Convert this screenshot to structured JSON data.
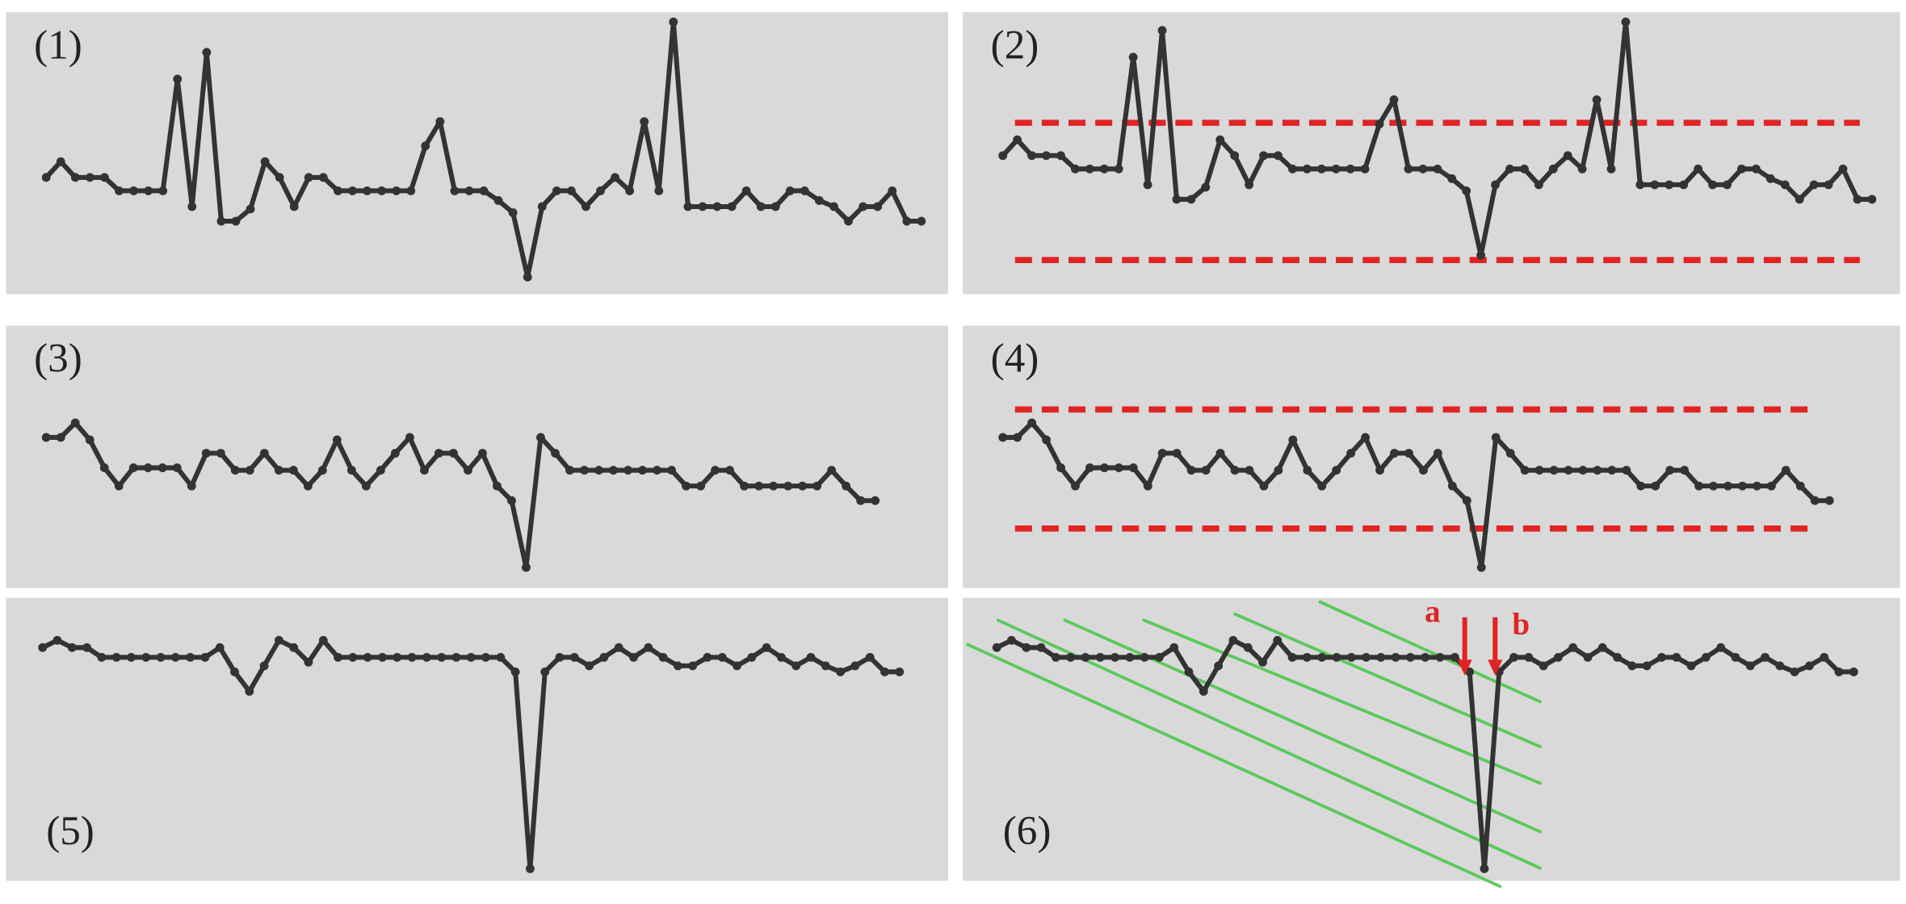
{
  "chart_data": [
    {
      "type": "line",
      "title": "(1)",
      "color": "#333333",
      "ylim": [
        0,
        232
      ],
      "values": [
        96,
        109,
        96,
        96,
        96,
        85,
        85,
        85,
        85,
        177,
        72,
        199,
        60,
        60,
        70,
        109,
        96,
        72,
        96,
        96,
        85,
        85,
        85,
        85,
        85,
        85,
        122,
        142,
        85,
        85,
        85,
        77,
        67,
        14,
        72,
        85,
        85,
        72,
        85,
        96,
        85,
        142,
        85,
        224,
        72,
        72,
        72,
        72,
        85,
        72,
        72,
        85,
        85,
        77,
        72,
        60,
        72,
        72,
        85,
        60,
        60
      ]
    },
    {
      "type": "line",
      "title": "(2)",
      "color": "#333333",
      "ylim": [
        0,
        232
      ],
      "values": [
        114,
        127,
        114,
        114,
        114,
        103,
        103,
        103,
        103,
        195,
        90,
        217,
        78,
        78,
        88,
        127,
        114,
        90,
        114,
        114,
        103,
        103,
        103,
        103,
        103,
        103,
        140,
        160,
        103,
        103,
        103,
        95,
        85,
        32,
        90,
        103,
        103,
        90,
        103,
        114,
        103,
        160,
        103,
        224,
        90,
        90,
        90,
        90,
        103,
        90,
        90,
        103,
        103,
        95,
        90,
        78,
        90,
        90,
        103,
        78,
        78
      ],
      "hlines": [
        141,
        28
      ],
      "hline_color": "#e02424"
    },
    {
      "type": "line",
      "title": "(3)",
      "color": "#333333",
      "ylim": [
        0,
        216
      ],
      "values": [
        124,
        124,
        136,
        122,
        99,
        84,
        99,
        99,
        99,
        99,
        84,
        111,
        111,
        97,
        97,
        111,
        97,
        97,
        84,
        97,
        122,
        97,
        84,
        97,
        111,
        124,
        97,
        111,
        111,
        97,
        111,
        84,
        72,
        17,
        124,
        111,
        97,
        97,
        97,
        97,
        97,
        97,
        97,
        97,
        84,
        84,
        97,
        97,
        84,
        84,
        84,
        84,
        84,
        84,
        97,
        84,
        72,
        72
      ]
    },
    {
      "type": "line",
      "title": "(4)",
      "color": "#333333",
      "ylim": [
        0,
        216
      ],
      "values": [
        124,
        124,
        136,
        122,
        99,
        84,
        99,
        99,
        99,
        99,
        84,
        111,
        111,
        97,
        97,
        111,
        97,
        97,
        84,
        97,
        122,
        97,
        84,
        97,
        111,
        124,
        97,
        111,
        111,
        97,
        111,
        84,
        72,
        17,
        124,
        111,
        97,
        97,
        97,
        97,
        97,
        97,
        97,
        97,
        84,
        84,
        97,
        97,
        84,
        84,
        84,
        84,
        84,
        84,
        97,
        84,
        72,
        72
      ],
      "hlines": [
        147,
        49
      ],
      "hline_color": "#e02424"
    },
    {
      "type": "line",
      "title": "(5)",
      "color": "#333333",
      "ylim": [
        0,
        233
      ],
      "values": [
        192,
        198,
        192,
        192,
        184,
        184,
        184,
        184,
        184,
        184,
        184,
        184,
        192,
        172,
        156,
        177,
        198,
        192,
        180,
        198,
        184,
        184,
        184,
        184,
        184,
        184,
        184,
        184,
        184,
        184,
        184,
        184,
        172,
        10,
        172,
        184,
        184,
        177,
        184,
        192,
        184,
        192,
        184,
        177,
        177,
        184,
        184,
        177,
        184,
        192,
        184,
        177,
        184,
        177,
        172,
        177,
        184,
        172,
        172
      ]
    },
    {
      "type": "line",
      "title": "(6)",
      "color": "#333333",
      "ylim": [
        0,
        233
      ],
      "values": [
        192,
        198,
        192,
        192,
        184,
        184,
        184,
        184,
        184,
        184,
        184,
        184,
        192,
        172,
        156,
        177,
        198,
        192,
        180,
        198,
        184,
        184,
        184,
        184,
        184,
        184,
        184,
        184,
        184,
        184,
        184,
        184,
        172,
        10,
        172,
        184,
        184,
        177,
        184,
        192,
        184,
        192,
        184,
        177,
        177,
        184,
        184,
        177,
        184,
        192,
        184,
        177,
        184,
        177,
        172,
        177,
        184,
        172,
        172
      ],
      "annotations": [
        "a",
        "b"
      ],
      "annotation_color": "#e02424"
    }
  ]
}
